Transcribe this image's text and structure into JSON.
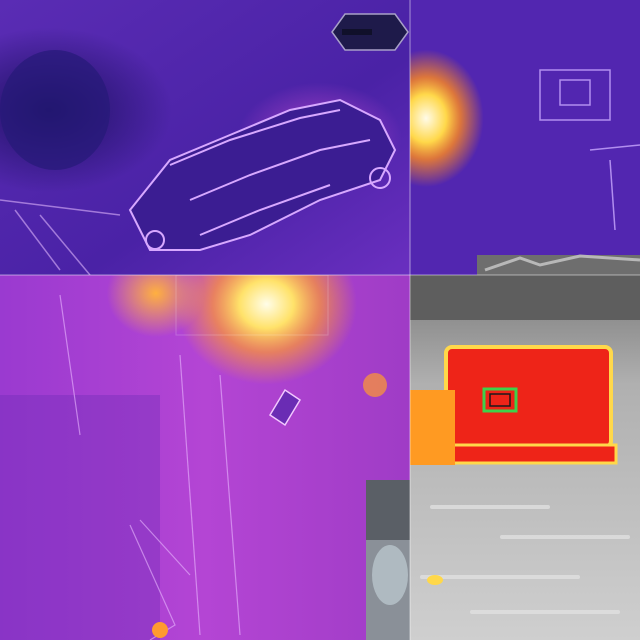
{
  "image": {
    "kind": "collage of thermal aerial camera frames",
    "tiles": [
      {
        "id": "top-left",
        "subject": "vehicle-outline",
        "palette": "purple-iron"
      },
      {
        "id": "top-right",
        "subject": "hot-spot-and-structure",
        "palette": "purple-iron"
      },
      {
        "id": "bottom-left",
        "subject": "bright-flare-and-vegetation",
        "palette": "magenta-iron"
      },
      {
        "id": "bottom-right",
        "subject": "hot-box-with-target-marker",
        "palette": "gray-red"
      }
    ],
    "colors": {
      "deep_purple": "#3a1a88",
      "violet": "#5a2bb8",
      "magenta": "#b040d0",
      "hot_white": "#fffbe8",
      "hot_yellow": "#ffd84a",
      "hot_orange": "#ff8a1e",
      "hot_red": "#ee2418",
      "thermal_gray": "#9a9a9a",
      "marker_green": "#3fd14a"
    }
  }
}
